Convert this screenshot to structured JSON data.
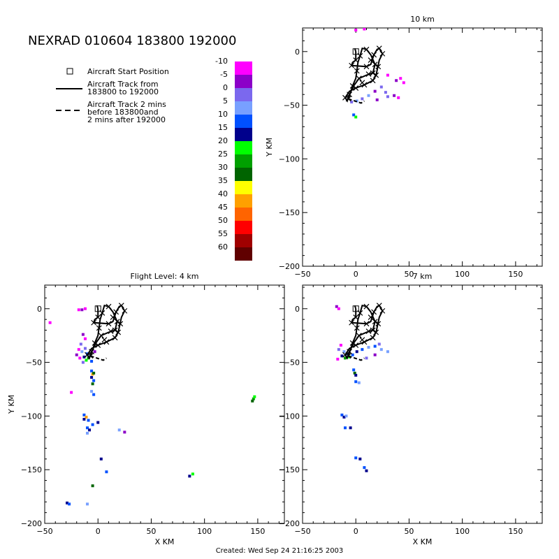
{
  "title": "NEXRAD 010604 183800 192000",
  "footer": "Created: Wed Sep 24 21:16:25 2003",
  "legend": {
    "start_label": "Aircraft Start Position",
    "track_label_1": "Aircraft Track from",
    "track_label_2": "183800 to 192000",
    "ext_label_1": "Aircraft Track 2 mins",
    "ext_label_2": "before 183800and",
    "ext_label_3": "2 mins after 192000"
  },
  "colorbar": {
    "labels": [
      "-10",
      "-5",
      "0",
      "5",
      "10",
      "15",
      "20",
      "25",
      "30",
      "35",
      "40",
      "45",
      "50",
      "55",
      "60"
    ],
    "colors": [
      "#ff00ff",
      "#8c00c8",
      "#7b68ee",
      "#78a0ff",
      "#0050ff",
      "#00008c",
      "#00ff00",
      "#00a000",
      "#006400",
      "#ffff00",
      "#ffa000",
      "#ff6400",
      "#ff0000",
      "#a00000",
      "#600000"
    ]
  },
  "chart_data": [
    {
      "type": "scatter",
      "panel": "flight-level",
      "title": "Flight Level: 4 km",
      "xlabel": "X KM",
      "ylabel": "Y KM",
      "xlim": [
        -50,
        175
      ],
      "ylim": [
        -200,
        22
      ],
      "xticks": [
        -50,
        0,
        50,
        100,
        150
      ],
      "yticks": [
        -200,
        -150,
        -100,
        -50,
        0
      ],
      "echoes": [
        {
          "x": -18,
          "y": -1,
          "dbz": -10
        },
        {
          "x": -15,
          "y": -1,
          "dbz": -5
        },
        {
          "x": -12,
          "y": 0,
          "dbz": -10
        },
        {
          "x": -45,
          "y": -13,
          "dbz": -10
        },
        {
          "x": -14,
          "y": -24,
          "dbz": -5
        },
        {
          "x": -12,
          "y": -28,
          "dbz": -10
        },
        {
          "x": -16,
          "y": -33,
          "dbz": 0
        },
        {
          "x": -18,
          "y": -38,
          "dbz": -10
        },
        {
          "x": -15,
          "y": -40,
          "dbz": 5
        },
        {
          "x": -12,
          "y": -37,
          "dbz": 0
        },
        {
          "x": -10,
          "y": -42,
          "dbz": 10
        },
        {
          "x": -13,
          "y": -45,
          "dbz": 15
        },
        {
          "x": -9,
          "y": -46,
          "dbz": 25
        },
        {
          "x": -11,
          "y": -48,
          "dbz": 20
        },
        {
          "x": -7,
          "y": -44,
          "dbz": 5
        },
        {
          "x": -14,
          "y": -50,
          "dbz": 0
        },
        {
          "x": -6,
          "y": -49,
          "dbz": 10
        },
        {
          "x": -17,
          "y": -46,
          "dbz": -10
        },
        {
          "x": -3,
          "y": -40,
          "dbz": -5
        },
        {
          "x": -20,
          "y": -43,
          "dbz": -5
        },
        {
          "x": -6,
          "y": -58,
          "dbz": 10
        },
        {
          "x": -5,
          "y": -61,
          "dbz": 40
        },
        {
          "x": -4,
          "y": -60,
          "dbz": 30
        },
        {
          "x": -6,
          "y": -64,
          "dbz": 15
        },
        {
          "x": -4,
          "y": -67,
          "dbz": 10
        },
        {
          "x": -5,
          "y": -70,
          "dbz": 30
        },
        {
          "x": -6,
          "y": -77,
          "dbz": 5
        },
        {
          "x": -4,
          "y": -80,
          "dbz": 10
        },
        {
          "x": -13,
          "y": -99,
          "dbz": 10
        },
        {
          "x": -11,
          "y": -101,
          "dbz": 40
        },
        {
          "x": -13,
          "y": -103,
          "dbz": 15
        },
        {
          "x": -9,
          "y": -104,
          "dbz": 10
        },
        {
          "x": -10,
          "y": -111,
          "dbz": 10
        },
        {
          "x": -8,
          "y": -113,
          "dbz": 15
        },
        {
          "x": -10,
          "y": -116,
          "dbz": 5
        },
        {
          "x": -5,
          "y": -108,
          "dbz": 10
        },
        {
          "x": 0,
          "y": -106,
          "dbz": 15
        },
        {
          "x": 20,
          "y": -113,
          "dbz": 5
        },
        {
          "x": 25,
          "y": -115,
          "dbz": -5
        },
        {
          "x": 146,
          "y": -84,
          "dbz": 25
        },
        {
          "x": 145,
          "y": -86,
          "dbz": 30
        },
        {
          "x": 147,
          "y": -82,
          "dbz": 20
        },
        {
          "x": 3,
          "y": -140,
          "dbz": 15
        },
        {
          "x": 8,
          "y": -152,
          "dbz": 10
        },
        {
          "x": 86,
          "y": -156,
          "dbz": 15
        },
        {
          "x": 89,
          "y": -154,
          "dbz": 20
        },
        {
          "x": -5,
          "y": -165,
          "dbz": 30
        },
        {
          "x": -29,
          "y": -181,
          "dbz": 15
        },
        {
          "x": -27,
          "y": -182,
          "dbz": 10
        },
        {
          "x": -10,
          "y": -182,
          "dbz": 5
        },
        {
          "x": -25,
          "y": -78,
          "dbz": -10
        }
      ]
    },
    {
      "type": "scatter",
      "panel": "10km",
      "title": "10 km",
      "xlabel": "",
      "ylabel": "Y KM",
      "xlim": [
        -50,
        175
      ],
      "ylim": [
        -200,
        22
      ],
      "xticks": [
        -50,
        0,
        50,
        100,
        150
      ],
      "yticks": [
        -200,
        -150,
        -100,
        -50,
        0
      ],
      "echoes": [
        {
          "x": 0,
          "y": 20,
          "dbz": -10
        },
        {
          "x": 8,
          "y": 21,
          "dbz": -10
        },
        {
          "x": 30,
          "y": -22,
          "dbz": -10
        },
        {
          "x": 38,
          "y": -27,
          "dbz": -5
        },
        {
          "x": 42,
          "y": -25,
          "dbz": -10
        },
        {
          "x": 24,
          "y": -33,
          "dbz": 0
        },
        {
          "x": 18,
          "y": -37,
          "dbz": -5
        },
        {
          "x": 28,
          "y": -38,
          "dbz": 0
        },
        {
          "x": 12,
          "y": -41,
          "dbz": 5
        },
        {
          "x": 6,
          "y": -44,
          "dbz": 0
        },
        {
          "x": 1,
          "y": -46,
          "dbz": 5
        },
        {
          "x": -4,
          "y": -47,
          "dbz": 0
        },
        {
          "x": 20,
          "y": -45,
          "dbz": -5
        },
        {
          "x": 30,
          "y": -42,
          "dbz": 0
        },
        {
          "x": 36,
          "y": -41,
          "dbz": -5
        },
        {
          "x": -2,
          "y": -59,
          "dbz": 10
        },
        {
          "x": 0,
          "y": -61,
          "dbz": 20
        },
        {
          "x": 40,
          "y": -43,
          "dbz": -10
        },
        {
          "x": 45,
          "y": -29,
          "dbz": -10
        }
      ]
    },
    {
      "type": "scatter",
      "panel": "7km",
      "title": "7 km",
      "xlabel": "X KM",
      "ylabel": "",
      "xlim": [
        -50,
        175
      ],
      "ylim": [
        -200,
        22
      ],
      "xticks": [
        -50,
        0,
        50,
        100,
        150
      ],
      "yticks": [
        -200,
        -150,
        -100,
        -50,
        0
      ],
      "echoes": [
        {
          "x": -18,
          "y": 2,
          "dbz": -5
        },
        {
          "x": -16,
          "y": 0,
          "dbz": -10
        },
        {
          "x": -14,
          "y": -34,
          "dbz": -10
        },
        {
          "x": -16,
          "y": -38,
          "dbz": 0
        },
        {
          "x": -11,
          "y": -40,
          "dbz": 5
        },
        {
          "x": -8,
          "y": -42,
          "dbz": 10
        },
        {
          "x": -13,
          "y": -44,
          "dbz": 15
        },
        {
          "x": -10,
          "y": -46,
          "dbz": 25
        },
        {
          "x": -6,
          "y": -45,
          "dbz": 20
        },
        {
          "x": -3,
          "y": -43,
          "dbz": 10
        },
        {
          "x": 1,
          "y": -40,
          "dbz": 15
        },
        {
          "x": 6,
          "y": -38,
          "dbz": 10
        },
        {
          "x": 12,
          "y": -36,
          "dbz": 5
        },
        {
          "x": 18,
          "y": -35,
          "dbz": 10
        },
        {
          "x": 24,
          "y": -38,
          "dbz": 5
        },
        {
          "x": 22,
          "y": -33,
          "dbz": 0
        },
        {
          "x": 30,
          "y": -40,
          "dbz": 5
        },
        {
          "x": 18,
          "y": -43,
          "dbz": -5
        },
        {
          "x": -17,
          "y": -47,
          "dbz": -10
        },
        {
          "x": 10,
          "y": -46,
          "dbz": 0
        },
        {
          "x": -2,
          "y": -57,
          "dbz": 10
        },
        {
          "x": -1,
          "y": -60,
          "dbz": 30
        },
        {
          "x": 0,
          "y": -62,
          "dbz": 15
        },
        {
          "x": 0,
          "y": -68,
          "dbz": 10
        },
        {
          "x": 3,
          "y": -69,
          "dbz": 5
        },
        {
          "x": -13,
          "y": -99,
          "dbz": 10
        },
        {
          "x": -11,
          "y": -101,
          "dbz": 15
        },
        {
          "x": -9,
          "y": -100,
          "dbz": 5
        },
        {
          "x": -10,
          "y": -111,
          "dbz": 10
        },
        {
          "x": -5,
          "y": -111,
          "dbz": 15
        },
        {
          "x": 0,
          "y": -139,
          "dbz": 10
        },
        {
          "x": 4,
          "y": -140,
          "dbz": 15
        },
        {
          "x": 8,
          "y": -148,
          "dbz": 10
        },
        {
          "x": 10,
          "y": -151,
          "dbz": 15
        }
      ]
    }
  ],
  "track": {
    "start": {
      "x": 0,
      "y": 0
    },
    "main": [
      [
        0,
        0
      ],
      [
        0,
        -8
      ],
      [
        -3,
        -10
      ],
      [
        -4,
        -13
      ],
      [
        10,
        -14
      ],
      [
        14,
        -12
      ],
      [
        17,
        -3
      ],
      [
        20,
        2
      ],
      [
        22,
        3
      ],
      [
        25,
        -2
      ],
      [
        22,
        -8
      ],
      [
        19,
        -22
      ],
      [
        16,
        -27
      ],
      [
        8,
        -31
      ],
      [
        0,
        -34
      ],
      [
        -6,
        -37
      ],
      [
        -10,
        -43
      ],
      [
        -8,
        -46
      ],
      [
        -6,
        -40
      ],
      [
        -2,
        -32
      ],
      [
        3,
        -25
      ],
      [
        10,
        -22
      ],
      [
        16,
        -20
      ],
      [
        18,
        -12
      ],
      [
        14,
        -3
      ],
      [
        10,
        2
      ],
      [
        6,
        3
      ],
      [
        4,
        -4
      ],
      [
        2,
        -10
      ],
      [
        1,
        -18
      ],
      [
        0,
        -25
      ],
      [
        -3,
        -32
      ],
      [
        -5,
        -38
      ],
      [
        -7,
        -44
      ]
    ],
    "ext_before": [
      [
        -1,
        3
      ],
      [
        0,
        0
      ]
    ],
    "ext_after": [
      [
        -7,
        -44
      ],
      [
        -1,
        -46
      ],
      [
        5,
        -48
      ],
      [
        8,
        -46
      ]
    ],
    "markers": [
      [
        0,
        -8
      ],
      [
        -4,
        -13
      ],
      [
        10,
        -14
      ],
      [
        17,
        -3
      ],
      [
        22,
        3
      ],
      [
        25,
        -2
      ],
      [
        19,
        -22
      ],
      [
        16,
        -27
      ],
      [
        8,
        -31
      ],
      [
        0,
        -34
      ],
      [
        -10,
        -43
      ],
      [
        -6,
        -40
      ],
      [
        3,
        -25
      ],
      [
        16,
        -20
      ],
      [
        18,
        -12
      ],
      [
        10,
        2
      ],
      [
        4,
        -4
      ],
      [
        1,
        -18
      ],
      [
        -3,
        -32
      ],
      [
        -7,
        -44
      ],
      [
        12,
        -21
      ],
      [
        6,
        -29
      ],
      [
        21,
        -14
      ],
      [
        14,
        -8
      ]
    ]
  }
}
